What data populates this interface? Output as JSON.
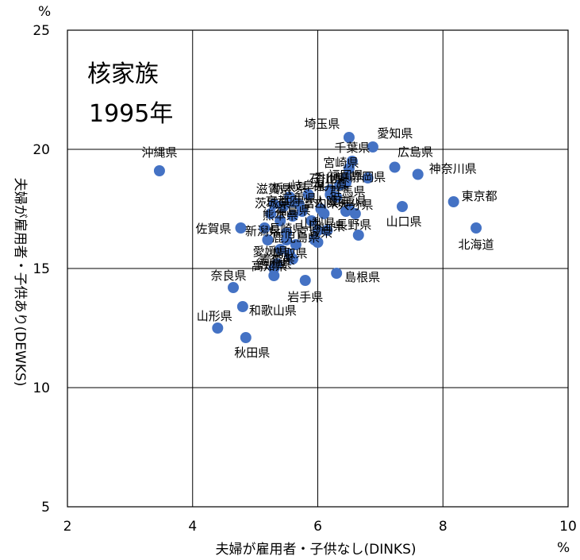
{
  "chart_data": {
    "type": "scatter",
    "inset_title": [
      "核家族",
      "1995年"
    ],
    "xlabel": "夫婦が雇用者・子供なし(DINKS)",
    "ylabel": "夫婦が雇用者・子供あり(DEWKS)",
    "x_unit": "%",
    "y_unit": "%",
    "xlim": [
      2,
      10
    ],
    "ylim": [
      5,
      25
    ],
    "xticks": [
      2,
      4,
      6,
      8,
      10
    ],
    "yticks": [
      5,
      10,
      15,
      20,
      25
    ],
    "grid": true,
    "marker_color": "#4472C4",
    "points": [
      {
        "label": "沖縄県",
        "x": 3.47,
        "y": 19.1
      },
      {
        "label": "埼玉県",
        "x": 6.5,
        "y": 20.5
      },
      {
        "label": "愛知県",
        "x": 6.88,
        "y": 20.1
      },
      {
        "label": "千葉県",
        "x": 6.55,
        "y": 19.5
      },
      {
        "label": "宮崎県",
        "x": 6.5,
        "y": 19.2
      },
      {
        "label": "広島県",
        "x": 7.23,
        "y": 19.25
      },
      {
        "label": "神奈川県",
        "x": 7.6,
        "y": 18.95
      },
      {
        "label": "石川県",
        "x": 6.45,
        "y": 18.8
      },
      {
        "label": "静岡県",
        "x": 6.8,
        "y": 18.8
      },
      {
        "label": "東京都",
        "x": 8.17,
        "y": 17.8
      },
      {
        "label": "山口県",
        "x": 7.35,
        "y": 17.6
      },
      {
        "label": "北海道",
        "x": 8.53,
        "y": 16.7
      },
      {
        "label": "滋賀県",
        "x": 5.3,
        "y": 17.7
      },
      {
        "label": "栃木県",
        "x": 5.55,
        "y": 18.0
      },
      {
        "label": "岐阜県",
        "x": 5.85,
        "y": 18.1
      },
      {
        "label": "福井県",
        "x": 6.2,
        "y": 18.1
      },
      {
        "label": "香川県",
        "x": 6.35,
        "y": 18.5
      },
      {
        "label": "福岡県",
        "x": 6.45,
        "y": 18.6
      },
      {
        "label": "群馬県",
        "x": 6.3,
        "y": 18.0
      },
      {
        "label": "奈良県",
        "x": 4.65,
        "y": 14.2
      },
      {
        "label": "和歌山県",
        "x": 4.8,
        "y": 13.4
      },
      {
        "label": "山形県",
        "x": 4.4,
        "y": 12.5
      },
      {
        "label": "秋田県",
        "x": 4.85,
        "y": 12.1
      },
      {
        "label": "佐賀県",
        "x": 4.77,
        "y": 16.7
      },
      {
        "label": "茨城県",
        "x": 5.25,
        "y": 17.3
      },
      {
        "label": "熊本県",
        "x": 5.4,
        "y": 17.0
      },
      {
        "label": "長野県",
        "x": 6.65,
        "y": 16.4
      },
      {
        "label": "大阪府",
        "x": 6.1,
        "y": 17.3
      },
      {
        "label": "島根県",
        "x": 6.3,
        "y": 14.8
      },
      {
        "label": "岩手県",
        "x": 5.8,
        "y": 14.5
      },
      {
        "label": "徳島県",
        "x": 5.3,
        "y": 14.7
      },
      {
        "label": "高知県",
        "x": 5.35,
        "y": 15.2
      },
      {
        "label": "新潟県",
        "x": 5.2,
        "y": 16.2
      },
      {
        "label": "愛媛県",
        "x": 5.4,
        "y": 15.8
      },
      {
        "label": "鳥取県",
        "x": 5.55,
        "y": 15.6
      },
      {
        "label": "青森県",
        "x": 5.6,
        "y": 15.4
      },
      {
        "label": "長崎県",
        "x": 5.5,
        "y": 16.5
      },
      {
        "label": "鹿児島県",
        "x": 5.65,
        "y": 16.0
      },
      {
        "label": "宮城県",
        "x": 5.95,
        "y": 16.2
      },
      {
        "label": "山梨県",
        "x": 6.0,
        "y": 16.6
      },
      {
        "label": "岡山県",
        "x": 6.15,
        "y": 16.6
      },
      {
        "label": "三重県",
        "x": 5.7,
        "y": 17.7
      },
      {
        "label": "富山県",
        "x": 6.05,
        "y": 17.5
      },
      {
        "label": "京都府",
        "x": 5.45,
        "y": 17.6
      },
      {
        "label": "兵庫県",
        "x": 6.5,
        "y": 17.5
      },
      {
        "label": "大分県",
        "x": 6.6,
        "y": 17.3
      },
      {
        "label": "福島県",
        "x": 5.6,
        "y": 17.2
      },
      {
        "label": "山形県2",
        "x": 5.9,
        "y": 17.0
      },
      {
        "label": "",
        "x": 5.75,
        "y": 17.4
      },
      {
        "label": "",
        "x": 6.0,
        "y": 16.1
      },
      {
        "label": "",
        "x": 5.5,
        "y": 16.2
      },
      {
        "label": "",
        "x": 5.3,
        "y": 15.0
      },
      {
        "label": "",
        "x": 5.6,
        "y": 17.8
      },
      {
        "label": "",
        "x": 6.2,
        "y": 18.3
      },
      {
        "label": "",
        "x": 6.45,
        "y": 17.4
      },
      {
        "label": "",
        "x": 5.15,
        "y": 16.7
      }
    ]
  }
}
